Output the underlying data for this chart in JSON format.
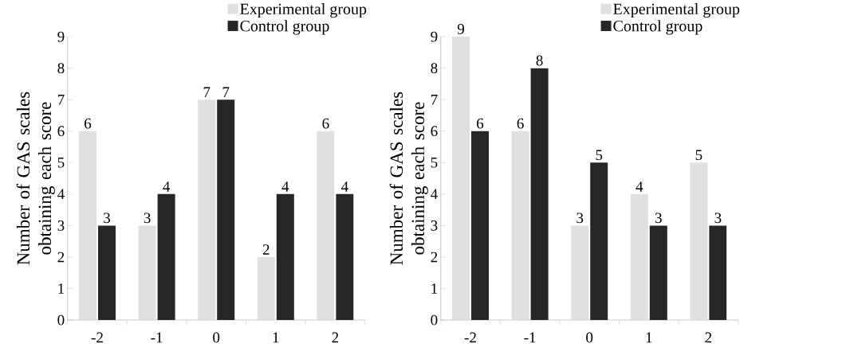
{
  "chart_data": [
    {
      "type": "bar",
      "categories": [
        "-2",
        "-1",
        "0",
        "1",
        "2"
      ],
      "ylabel": "Number of GAS scales obtaining each score",
      "ylim": [
        0,
        9
      ],
      "yticks": [
        0,
        1,
        2,
        3,
        4,
        5,
        6,
        7,
        8,
        9
      ],
      "data_labels": true,
      "legend": "top right",
      "grid": false,
      "series": [
        {
          "name": "Experimental group",
          "color": "#e0e0e0",
          "values": [
            6,
            3,
            7,
            2,
            6
          ]
        },
        {
          "name": "Control group",
          "color": "#262626",
          "values": [
            3,
            4,
            7,
            4,
            4
          ]
        }
      ]
    },
    {
      "type": "bar",
      "categories": [
        "-2",
        "-1",
        "0",
        "1",
        "2"
      ],
      "ylabel": "Number of GAS scales obtaining each score",
      "ylim": [
        0,
        9
      ],
      "yticks": [
        0,
        1,
        2,
        3,
        4,
        5,
        6,
        7,
        8,
        9
      ],
      "data_labels": true,
      "legend": "top right",
      "grid": false,
      "series": [
        {
          "name": "Experimental group",
          "color": "#e0e0e0",
          "values": [
            9,
            6,
            3,
            4,
            5
          ]
        },
        {
          "name": "Control group",
          "color": "#262626",
          "values": [
            6,
            8,
            5,
            3,
            3
          ]
        }
      ]
    }
  ]
}
